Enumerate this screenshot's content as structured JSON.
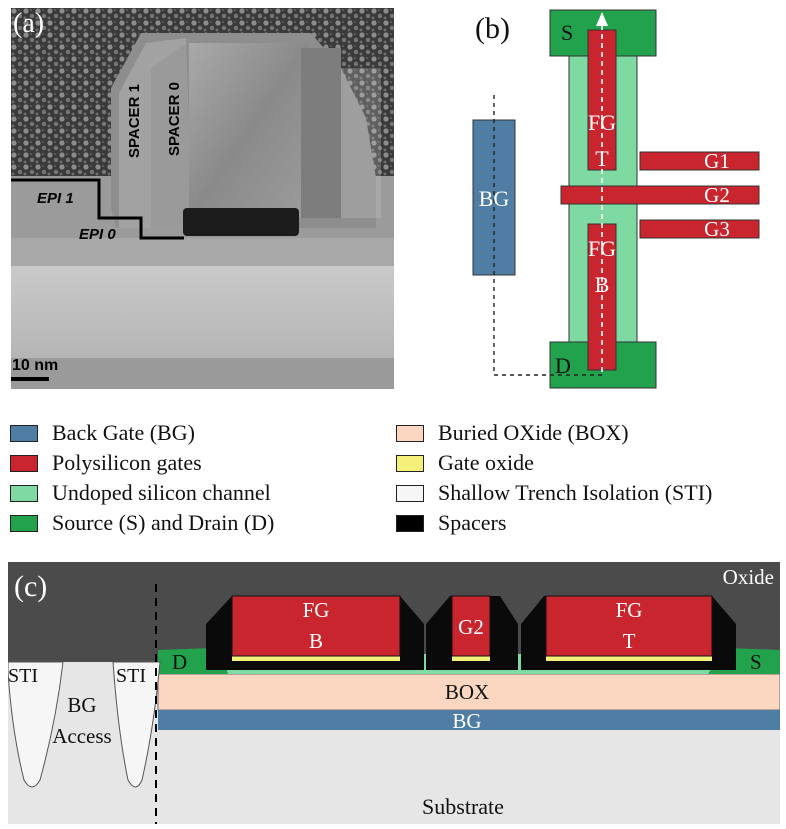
{
  "panel_a": {
    "label": "(a)",
    "spacer1": "SPACER 1",
    "spacer0": "SPACER 0",
    "epi1": "EPI 1",
    "epi0": "EPI 0",
    "scalebar": "10 nm"
  },
  "panel_b": {
    "label": "(b)",
    "source": "S",
    "drain": "D",
    "bg": "BG",
    "fgt_1": "FG",
    "fgt_2": "T",
    "fgb_1": "FG",
    "fgb_2": "B",
    "g1": "G1",
    "g2": "G2",
    "g3": "G3"
  },
  "legend": [
    {
      "label": "Back Gate (BG)",
      "color": "#4f7da3"
    },
    {
      "label": "Polysilicon gates",
      "color": "#c8252e"
    },
    {
      "label": "Undoped silicon channel",
      "color": "#7fd9a2"
    },
    {
      "label": "Source (S) and Drain (D)",
      "color": "#23a24d"
    },
    {
      "label": "Buried OXide (BOX)",
      "color": "#fbd7c2"
    },
    {
      "label": "Gate oxide",
      "color": "#f4f07a"
    },
    {
      "label": "Shallow Trench Isolation (STI)",
      "color": "#f6f6f6"
    },
    {
      "label": "Spacers",
      "color": "#000000"
    }
  ],
  "panel_c": {
    "label": "(c)",
    "oxide": "Oxide",
    "fgb_1": "FG",
    "fgb_2": "B",
    "g2": "G2",
    "fgt_1": "FG",
    "fgt_2": "T",
    "drain": "D",
    "source": "S",
    "sti_left": "STI",
    "sti_right": "STI",
    "bg_access_1": "BG",
    "bg_access_2": "Access",
    "box": "BOX",
    "bg": "BG",
    "substrate": "Substrate"
  }
}
